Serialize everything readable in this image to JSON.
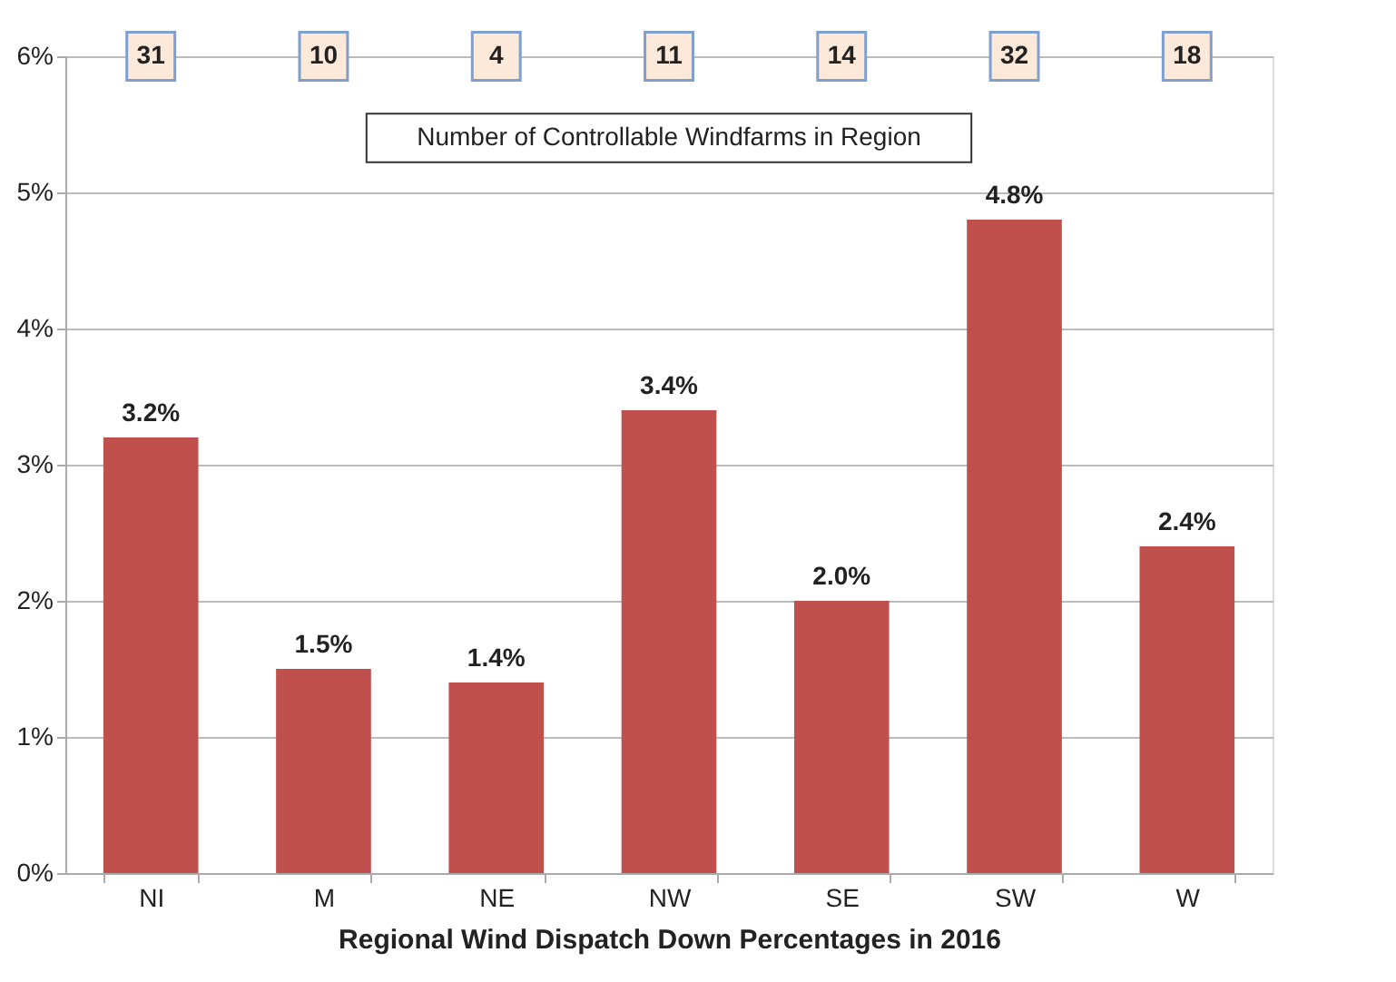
{
  "chart_data": {
    "type": "bar",
    "xlabel": "Regional Wind Dispatch Down Percentages in 2016",
    "categories": [
      "NI",
      "M",
      "NE",
      "NW",
      "SE",
      "SW",
      "W"
    ],
    "values": [
      3.2,
      1.5,
      1.4,
      3.4,
      2.0,
      4.8,
      2.4
    ],
    "color": "#c0504d",
    "value_labels": [
      "3.2%",
      "1.5%",
      "1.4%",
      "3.4%",
      "2.0%",
      "4.8%",
      "2.4%"
    ],
    "ylim": [
      0,
      6
    ],
    "yticks": [
      {
        "value": 0,
        "label": "0%"
      },
      {
        "value": 1,
        "label": "1%"
      },
      {
        "value": 2,
        "label": "2%"
      },
      {
        "value": 3,
        "label": "3%"
      },
      {
        "value": 4,
        "label": "4%"
      },
      {
        "value": 5,
        "label": "5%"
      },
      {
        "value": 6,
        "label": "6%"
      }
    ],
    "grid": "y",
    "annotations": [
      "Number of Controllable Windfarms in Region",
      {
        "text": "31",
        "x": "NI",
        "y": 6
      },
      {
        "text": "10",
        "x": "M",
        "y": 6
      },
      {
        "text": "4",
        "x": "NE",
        "y": 6
      },
      {
        "text": "11",
        "x": "NW",
        "y": 6
      },
      {
        "text": "14",
        "x": "SE",
        "y": 6
      },
      {
        "text": "32",
        "x": "SW",
        "y": 6
      },
      {
        "text": "18",
        "x": "W",
        "y": 6
      }
    ]
  }
}
